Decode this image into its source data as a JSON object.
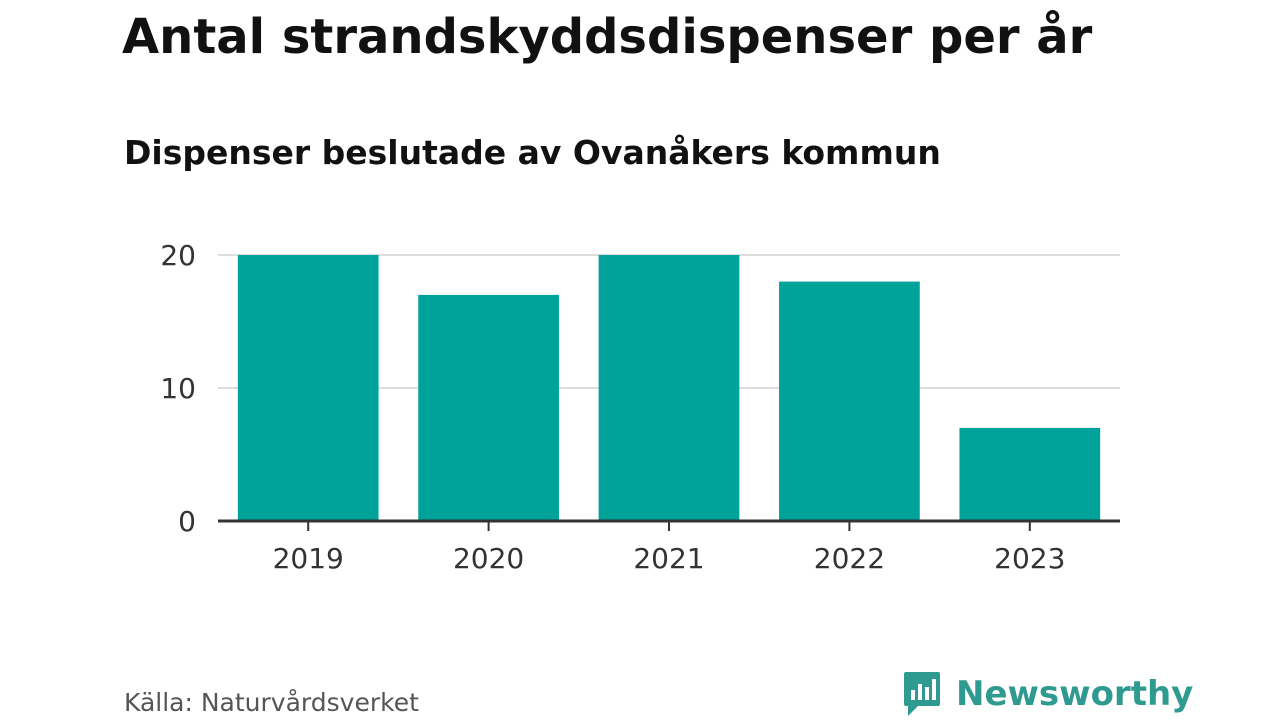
{
  "title": "Antal strandskyddsdispenser per år",
  "subtitle": "Dispenser beslutade av Ovanåkers kommun",
  "source": "Källa: Naturvårdsverket",
  "brand": {
    "name": "Newsworthy",
    "icon": "newsworthy-logo-icon",
    "color": "#2f9a8f"
  },
  "colors": {
    "bar": "#00a39a",
    "grid": "#dddddd",
    "axis": "#333333"
  },
  "chart_data": {
    "type": "bar",
    "title": "Antal strandskyddsdispenser per år",
    "subtitle": "Dispenser beslutade av Ovanåkers kommun",
    "categories": [
      "2019",
      "2020",
      "2021",
      "2022",
      "2023"
    ],
    "values": [
      20,
      17,
      20,
      18,
      7
    ],
    "xlabel": "",
    "ylabel": "",
    "ylim": [
      0,
      20
    ],
    "yticks": [
      0,
      10,
      20
    ],
    "ytick_labels": [
      "0",
      "10",
      "20"
    ],
    "grid": true,
    "legend": "none"
  }
}
